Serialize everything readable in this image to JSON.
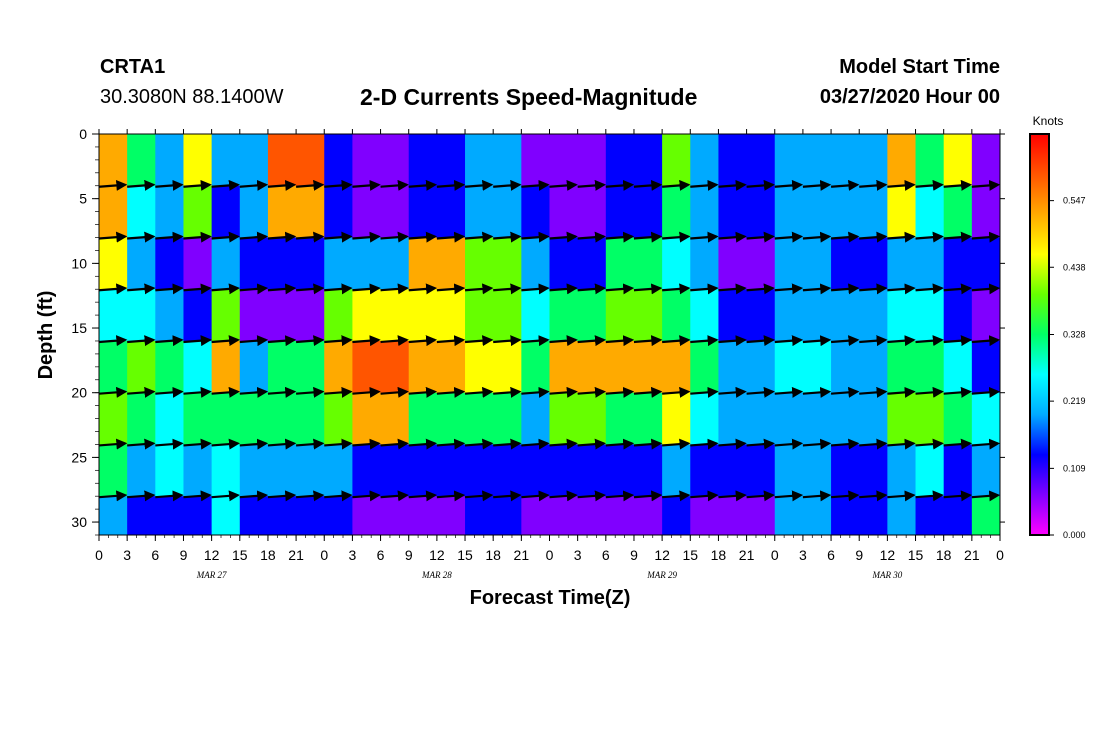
{
  "header": {
    "station_id": "CRTA1",
    "station_coords": "30.3080N 88.1400W",
    "title": "2-D Currents Speed-Magnitude",
    "start_label": "Model Start Time",
    "start_value": "03/27/2020 Hour 00"
  },
  "chart_data": {
    "type": "heatmap",
    "xlabel": "Forecast Time(Z)",
    "ylabel": "Depth (ft)",
    "x_range_hours": [
      0,
      96
    ],
    "ylim": [
      0,
      31
    ],
    "x_tick_labels": [
      "0",
      "3",
      "6",
      "9",
      "12",
      "15",
      "18",
      "21",
      "0",
      "3",
      "6",
      "9",
      "12",
      "15",
      "18",
      "21",
      "0",
      "3",
      "6",
      "9",
      "12",
      "15",
      "18",
      "21",
      "0",
      "3",
      "6",
      "9",
      "12",
      "15",
      "18",
      "21",
      "0"
    ],
    "date_labels": [
      {
        "label": "MAR 27",
        "hour": 12
      },
      {
        "label": "MAR 28",
        "hour": 36
      },
      {
        "label": "MAR 29",
        "hour": 60
      },
      {
        "label": "MAR 30",
        "hour": 84
      }
    ],
    "y_ticks": [
      0,
      5,
      10,
      15,
      20,
      25,
      30
    ],
    "colorbar": {
      "unit": "Knots",
      "tick_labels": [
        "0.000",
        "0.109",
        "0.219",
        "0.328",
        "0.438",
        "0.547"
      ],
      "min": 0.0,
      "max": 0.656,
      "colors": [
        "#ff00ff",
        "#8000ff",
        "#0000ff",
        "#00aaff",
        "#00ffff",
        "#00ff66",
        "#66ff00",
        "#ffff00",
        "#ffaa00",
        "#ff5500",
        "#ff0000"
      ]
    },
    "arrow_depths": [
      4,
      8,
      12,
      16,
      20,
      24,
      28
    ],
    "arrow_hours": [
      0,
      3,
      6,
      9,
      12,
      15,
      18,
      21,
      24,
      27,
      30,
      33,
      36,
      39,
      42,
      45,
      48,
      51,
      54,
      57,
      60,
      63,
      66,
      69,
      72,
      75,
      78,
      81,
      84,
      87,
      90,
      93,
      96
    ],
    "arrow_direction_note": "arrows show current direction; mostly eastward",
    "speed_columns": [
      {
        "hours": [
          0,
          3
        ],
        "profile": [
          0.5,
          0.5,
          0.45,
          0.25,
          0.35,
          0.42,
          0.3,
          0.18
        ]
      },
      {
        "hours": [
          3,
          6
        ],
        "profile": [
          0.3,
          0.25,
          0.2,
          0.28,
          0.4,
          0.35,
          0.22,
          0.12
        ]
      },
      {
        "hours": [
          6,
          9
        ],
        "profile": [
          0.22,
          0.18,
          0.12,
          0.2,
          0.3,
          0.28,
          0.25,
          0.1
        ]
      },
      {
        "hours": [
          9,
          12
        ],
        "profile": [
          0.45,
          0.4,
          0.08,
          0.1,
          0.25,
          0.32,
          0.2,
          0.12
        ]
      },
      {
        "hours": [
          12,
          15
        ],
        "profile": [
          0.2,
          0.15,
          0.2,
          0.4,
          0.5,
          0.35,
          0.25,
          0.28
        ]
      },
      {
        "hours": [
          15,
          18
        ],
        "profile": [
          0.22,
          0.2,
          0.1,
          0.06,
          0.22,
          0.3,
          0.2,
          0.15
        ]
      },
      {
        "hours": [
          18,
          24
        ],
        "profile": [
          0.6,
          0.52,
          0.1,
          0.05,
          0.3,
          0.35,
          0.2,
          0.1
        ]
      },
      {
        "hours": [
          24,
          27
        ],
        "profile": [
          0.12,
          0.1,
          0.18,
          0.4,
          0.55,
          0.42,
          0.2,
          0.1
        ]
      },
      {
        "hours": [
          27,
          33
        ],
        "profile": [
          0.05,
          0.08,
          0.22,
          0.45,
          0.58,
          0.5,
          0.15,
          0.08
        ]
      },
      {
        "hours": [
          33,
          39
        ],
        "profile": [
          0.12,
          0.16,
          0.5,
          0.48,
          0.52,
          0.35,
          0.15,
          0.08
        ]
      },
      {
        "hours": [
          39,
          45
        ],
        "profile": [
          0.18,
          0.22,
          0.4,
          0.38,
          0.45,
          0.3,
          0.14,
          0.1
        ]
      },
      {
        "hours": [
          45,
          48
        ],
        "profile": [
          0.05,
          0.12,
          0.2,
          0.25,
          0.3,
          0.22,
          0.1,
          0.08
        ]
      },
      {
        "hours": [
          48,
          54
        ],
        "profile": [
          0.04,
          0.06,
          0.12,
          0.35,
          0.52,
          0.38,
          0.1,
          0.06
        ]
      },
      {
        "hours": [
          54,
          60
        ],
        "profile": [
          0.1,
          0.15,
          0.3,
          0.42,
          0.5,
          0.32,
          0.1,
          0.06
        ]
      },
      {
        "hours": [
          60,
          63
        ],
        "profile": [
          0.4,
          0.35,
          0.25,
          0.35,
          0.5,
          0.45,
          0.18,
          0.1
        ]
      },
      {
        "hours": [
          63,
          66
        ],
        "profile": [
          0.22,
          0.2,
          0.2,
          0.28,
          0.3,
          0.25,
          0.12,
          0.08
        ]
      },
      {
        "hours": [
          66,
          72
        ],
        "profile": [
          0.15,
          0.12,
          0.08,
          0.12,
          0.2,
          0.18,
          0.1,
          0.06
        ]
      },
      {
        "hours": [
          72,
          78
        ],
        "profile": [
          0.22,
          0.2,
          0.18,
          0.22,
          0.24,
          0.2,
          0.22,
          0.2
        ]
      },
      {
        "hours": [
          78,
          84
        ],
        "profile": [
          0.2,
          0.18,
          0.15,
          0.2,
          0.22,
          0.18,
          0.15,
          0.12
        ]
      },
      {
        "hours": [
          84,
          87
        ],
        "profile": [
          0.52,
          0.45,
          0.2,
          0.25,
          0.3,
          0.4,
          0.2,
          0.22
        ]
      },
      {
        "hours": [
          87,
          90
        ],
        "profile": [
          0.3,
          0.25,
          0.2,
          0.25,
          0.35,
          0.42,
          0.28,
          0.15
        ]
      },
      {
        "hours": [
          90,
          93
        ],
        "profile": [
          0.48,
          0.3,
          0.12,
          0.15,
          0.25,
          0.3,
          0.15,
          0.1
        ]
      },
      {
        "hours": [
          93,
          96
        ],
        "profile": [
          0.04,
          0.06,
          0.12,
          0.08,
          0.1,
          0.28,
          0.22,
          0.3
        ]
      }
    ]
  }
}
